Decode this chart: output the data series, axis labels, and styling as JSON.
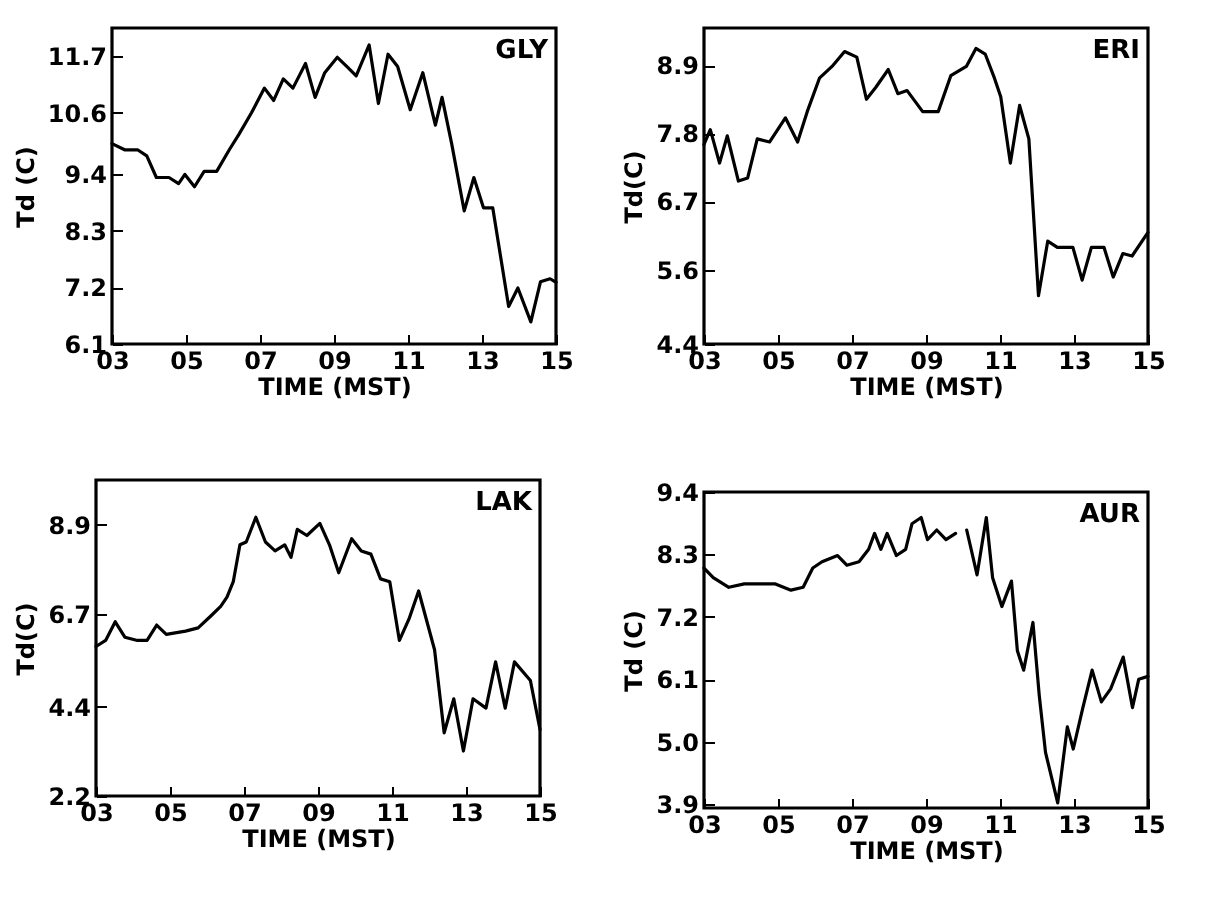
{
  "chart_data": [
    {
      "type": "line",
      "xlabel": "TIME (MST)",
      "ylabel": "Td (C)",
      "annotations": [
        "GLY"
      ],
      "xlim": [
        3,
        15
      ],
      "ylim": [
        6.1,
        12.25
      ],
      "xticks": [
        {
          "value": 3,
          "label": "03"
        },
        {
          "value": 5,
          "label": "05"
        },
        {
          "value": 7,
          "label": "07"
        },
        {
          "value": 9,
          "label": "09"
        },
        {
          "value": 11,
          "label": "11"
        },
        {
          "value": 13,
          "label": "13"
        },
        {
          "value": 15,
          "label": "15"
        }
      ],
      "yticks": [
        6.1,
        7.2,
        8.3,
        9.4,
        10.6,
        11.7
      ],
      "grid": false,
      "series": [
        {
          "color": "#000000",
          "x": [
            3.0,
            3.34,
            3.69,
            3.94,
            4.2,
            4.54,
            4.8,
            4.97,
            5.23,
            5.49,
            5.83,
            6.17,
            6.43,
            6.77,
            7.12,
            7.37,
            7.63,
            7.89,
            8.23,
            8.49,
            8.75,
            9.09,
            9.35,
            9.6,
            9.95,
            10.2,
            10.46,
            10.72,
            11.06,
            11.4,
            11.74,
            11.92,
            12.18,
            12.52,
            12.78,
            13.04,
            13.29,
            13.72,
            13.97,
            14.32,
            14.58,
            14.84,
            15.0
          ],
          "values": [
            10.0,
            9.88,
            9.88,
            9.76,
            9.34,
            9.34,
            9.22,
            9.4,
            9.16,
            9.46,
            9.46,
            9.88,
            10.18,
            10.6,
            11.08,
            10.84,
            11.26,
            11.08,
            11.56,
            10.9,
            11.38,
            11.68,
            11.5,
            11.32,
            11.92,
            10.78,
            11.74,
            11.5,
            10.66,
            11.38,
            10.36,
            10.9,
            10.0,
            8.69,
            9.34,
            8.75,
            8.75,
            6.83,
            7.19,
            6.53,
            7.31,
            7.37,
            7.3
          ]
        }
      ]
    },
    {
      "type": "line",
      "xlabel": "TIME (MST)",
      "ylabel": "Td(C)",
      "annotations": [
        "ERI"
      ],
      "xlim": [
        3,
        15
      ],
      "ylim": [
        4.4,
        9.5
      ],
      "xticks": [
        {
          "value": 3,
          "label": "03"
        },
        {
          "value": 5,
          "label": "05"
        },
        {
          "value": 7,
          "label": "07"
        },
        {
          "value": 9,
          "label": "09"
        },
        {
          "value": 11,
          "label": "11"
        },
        {
          "value": 13,
          "label": "13"
        },
        {
          "value": 15,
          "label": "15"
        }
      ],
      "yticks": [
        4.4,
        5.6,
        6.7,
        7.8,
        8.9
      ],
      "grid": false,
      "series": [
        {
          "color": "#000000",
          "x": [
            3.0,
            3.17,
            3.42,
            3.63,
            3.93,
            4.18,
            4.44,
            4.77,
            5.2,
            5.53,
            5.79,
            6.12,
            6.46,
            6.8,
            7.13,
            7.39,
            7.64,
            7.98,
            8.24,
            8.49,
            8.91,
            9.33,
            9.67,
            10.09,
            10.35,
            10.6,
            10.85,
            11.02,
            11.28,
            11.53,
            11.78,
            12.04,
            12.29,
            12.55,
            12.97,
            13.22,
            13.47,
            13.81,
            14.06,
            14.32,
            14.57,
            15.0
          ],
          "values": [
            7.62,
            7.86,
            7.32,
            7.76,
            7.03,
            7.08,
            7.71,
            7.66,
            8.05,
            7.66,
            8.15,
            8.69,
            8.88,
            9.12,
            9.03,
            8.35,
            8.54,
            8.83,
            8.44,
            8.49,
            8.15,
            8.15,
            8.73,
            8.88,
            9.17,
            9.08,
            8.69,
            8.39,
            7.32,
            8.25,
            7.71,
            5.18,
            6.06,
            5.96,
            5.96,
            5.43,
            5.96,
            5.96,
            5.48,
            5.86,
            5.82,
            6.2
          ]
        }
      ]
    },
    {
      "type": "line",
      "xlabel": "TIME (MST)",
      "ylabel": "Td(C)",
      "annotations": [
        "LAK"
      ],
      "xlim": [
        3,
        15
      ],
      "ylim": [
        2.2,
        10.0
      ],
      "xticks": [
        {
          "value": 3,
          "label": "03"
        },
        {
          "value": 5,
          "label": "05"
        },
        {
          "value": 7,
          "label": "07"
        },
        {
          "value": 9,
          "label": "09"
        },
        {
          "value": 11,
          "label": "11"
        },
        {
          "value": 13,
          "label": "13"
        },
        {
          "value": 15,
          "label": "15"
        }
      ],
      "yticks": [
        2.2,
        4.4,
        6.7,
        8.9
      ],
      "grid": false,
      "series": [
        {
          "color": "#000000",
          "x": [
            3.0,
            3.26,
            3.52,
            3.78,
            4.12,
            4.38,
            4.64,
            4.9,
            5.42,
            5.76,
            6.11,
            6.37,
            6.54,
            6.71,
            6.89,
            7.06,
            7.32,
            7.58,
            7.84,
            8.1,
            8.27,
            8.44,
            8.7,
            9.05,
            9.31,
            9.56,
            9.91,
            10.17,
            10.43,
            10.69,
            10.94,
            11.2,
            11.46,
            11.72,
            12.15,
            12.41,
            12.67,
            12.93,
            13.19,
            13.54,
            13.8,
            14.06,
            14.31,
            14.74,
            15.0
          ],
          "values": [
            5.89,
            6.04,
            6.5,
            6.12,
            6.04,
            6.04,
            6.42,
            6.19,
            6.27,
            6.35,
            6.65,
            6.88,
            7.11,
            7.49,
            8.4,
            8.47,
            9.08,
            8.47,
            8.25,
            8.4,
            8.09,
            8.78,
            8.63,
            8.93,
            8.4,
            7.71,
            8.55,
            8.25,
            8.17,
            7.56,
            7.49,
            6.04,
            6.57,
            7.26,
            5.81,
            3.76,
            4.6,
            3.31,
            4.6,
            4.37,
            5.51,
            4.37,
            5.51,
            5.05,
            3.84
          ]
        }
      ]
    },
    {
      "type": "line",
      "xlabel": "TIME (MST)",
      "ylabel": "Td (C)",
      "annotations": [
        "AUR"
      ],
      "xlim": [
        3,
        15
      ],
      "ylim": [
        3.83,
        9.4
      ],
      "xticks": [
        {
          "value": 3,
          "label": "03"
        },
        {
          "value": 5,
          "label": "05"
        },
        {
          "value": 7,
          "label": "07"
        },
        {
          "value": 9,
          "label": "09"
        },
        {
          "value": 11,
          "label": "11"
        },
        {
          "value": 13,
          "label": "13"
        },
        {
          "value": 15,
          "label": "15"
        }
      ],
      "yticks": [
        3.9,
        {
          "value": 5,
          "label": "5.0"
        },
        6.1,
        7.2,
        8.3,
        9.4
      ],
      "grid": false,
      "series": [
        {
          "color": "#000000",
          "x": [
            3.0,
            3.25,
            3.67,
            4.09,
            4.51,
            4.93,
            5.35,
            5.68,
            5.94,
            6.19,
            6.61,
            6.86,
            7.19,
            7.45,
            7.61,
            7.78,
            7.95,
            8.2,
            8.45,
            8.62,
            8.87,
            9.04,
            9.29,
            9.54,
            9.8,
            10.05,
            10.1,
            10.38,
            10.63,
            10.8,
            11.05,
            11.31,
            11.47,
            11.64,
            11.89,
            12.06,
            12.23,
            12.56,
            12.82,
            12.98,
            13.24,
            13.49,
            13.74,
            13.99,
            14.33,
            14.58,
            14.75,
            15.0
          ],
          "values": [
            8.06,
            7.89,
            7.72,
            7.78,
            7.78,
            7.78,
            7.67,
            7.72,
            8.06,
            8.17,
            8.28,
            8.11,
            8.17,
            8.39,
            8.67,
            8.39,
            8.67,
            8.28,
            8.39,
            8.84,
            8.95,
            8.56,
            8.73,
            8.56,
            8.67,
            null,
            8.73,
            7.94,
            8.95,
            7.89,
            7.38,
            7.83,
            6.6,
            6.26,
            7.1,
            5.82,
            4.81,
            3.92,
            5.26,
            4.87,
            5.6,
            6.26,
            5.7,
            5.93,
            6.49,
            5.6,
            6.1,
            6.15
          ]
        }
      ]
    }
  ]
}
